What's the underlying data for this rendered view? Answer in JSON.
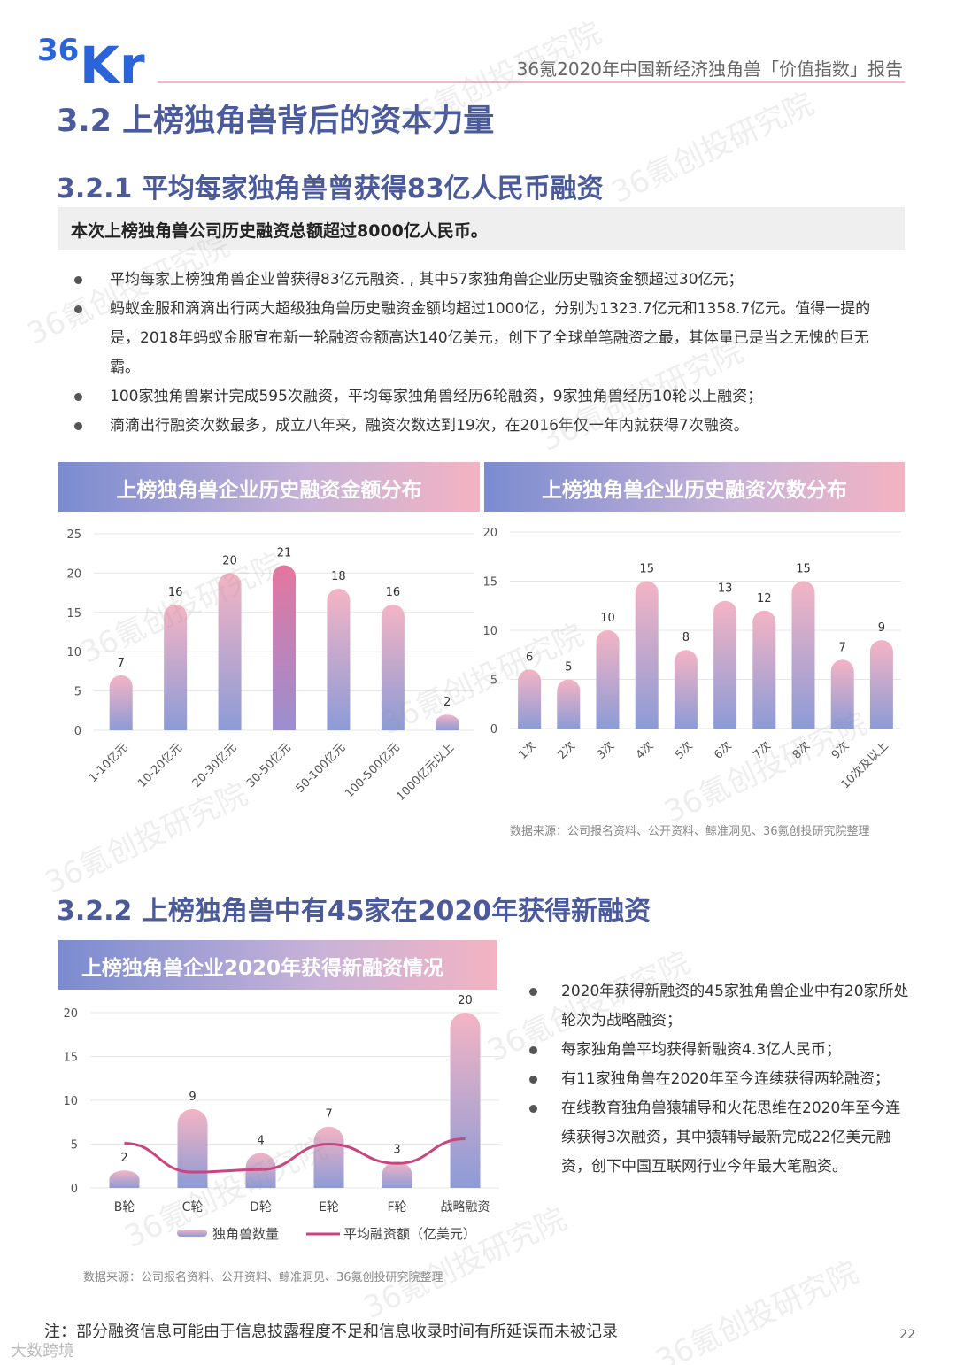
{
  "header": {
    "logo_text": "36Kr",
    "report_title": "36氪2020年中国新经济独角兽「价值指数」报告"
  },
  "section_title": "3.2 上榜独角兽背后的资本力量",
  "subsection1": {
    "title": "3.2.1 平均每家独角兽曾获得83亿人民币融资",
    "highlight": "本次上榜独角兽公司历史融资总额超过8000亿人民币。",
    "bullets": [
      "平均每家上榜独角兽企业曾获得83亿元融资. , 其中57家独角兽企业历史融资金额超过30亿元；",
      "蚂蚁金服和滴滴出行两大超级独角兽历史融资金额均超过1000亿，分别为1323.7亿元和1358.7亿元。值得一提的是，2018年蚂蚁金服宣布新一轮融资金额高达140亿美元，创下了全球单笔融资之最，其体量已是当之无愧的巨无霸。",
      "100家独角兽累计完成595次融资，平均每家独角兽经历6轮融资，9家独角兽经历10轮以上融资；",
      "滴滴出行融资次数最多，成立八年来，融资次数达到19次，在2016年仅一年内就获得7次融资。"
    ]
  },
  "chart_data": [
    {
      "type": "bar",
      "title": "上榜独角兽企业历史融资金额分布",
      "categories": [
        "1-10亿元",
        "10-20亿元",
        "20-30亿元",
        "30-50亿元",
        "50-100亿元",
        "100-500亿元",
        "1000亿元以上"
      ],
      "values": [
        7,
        16,
        20,
        21,
        18,
        16,
        2
      ],
      "highlight_index": 3,
      "yticks": [
        "0",
        "5",
        "10",
        "15",
        "20",
        "25"
      ],
      "ylim": [
        0,
        25
      ],
      "grid": true
    },
    {
      "type": "bar",
      "title": "上榜独角兽企业历史融资次数分布",
      "categories": [
        "1次",
        "2次",
        "3次",
        "4次",
        "5次",
        "6次",
        "7次",
        "8次",
        "9次",
        "10次及以上"
      ],
      "values": [
        6,
        5,
        10,
        15,
        8,
        13,
        12,
        15,
        7,
        9
      ],
      "yticks": [
        "0",
        "5",
        "10",
        "15",
        "20"
      ],
      "ylim": [
        0,
        20
      ],
      "grid": true
    },
    {
      "type": "bar",
      "title": "上榜独角兽企业2020年获得新融资情况",
      "categories": [
        "B轮",
        "C轮",
        "D轮",
        "E轮",
        "F轮",
        "战略融资"
      ],
      "series": [
        {
          "name": "独角兽数量",
          "type": "bar",
          "values": [
            2,
            9,
            4,
            7,
            3,
            20
          ]
        },
        {
          "name": "平均融资额（亿美元）",
          "type": "line",
          "values": [
            5.1,
            1.8,
            2.1,
            5.0,
            2.8,
            5.6
          ]
        }
      ],
      "yticks": [
        "0",
        "5",
        "10",
        "15",
        "20"
      ],
      "ylim": [
        0,
        20
      ],
      "legend": "bottom"
    }
  ],
  "source1": "数据来源：公司报名资料、公开资料、鲸准洞见、36氪创投研究院整理",
  "subsection2": {
    "title": "3.2.2 上榜独角兽中有45家在2020年获得新融资",
    "bullets": [
      "2020年获得新融资的45家独角兽企业中有20家所处轮次为战略融资；",
      "每家独角兽平均获得新融资4.3亿人民币；",
      "有11家独角兽在2020年至今连续获得两轮融资；",
      "在线教育独角兽猿辅导和火花思维在2020年至今连续获得3次融资，其中猿辅导最新完成22亿美元融资，创下中国互联网行业今年最大笔融资。"
    ]
  },
  "source2": "数据来源：公司报名资料、公开资料、鲸准洞见、36氪创投研究院整理",
  "footnote": "注：部分融资信息可能由于信息披露程度不足和信息收录时间有所延误而未被记录",
  "page_number": "22",
  "corner_mark": "大数跨境",
  "watermark": "36氪创投研究院",
  "colors": {
    "title": "#4a5a9a",
    "bar_top": "#f4b4c4",
    "bar_bottom": "#8c9bd6",
    "bar_highlight": "#e5769f",
    "line": "#c9457f"
  }
}
